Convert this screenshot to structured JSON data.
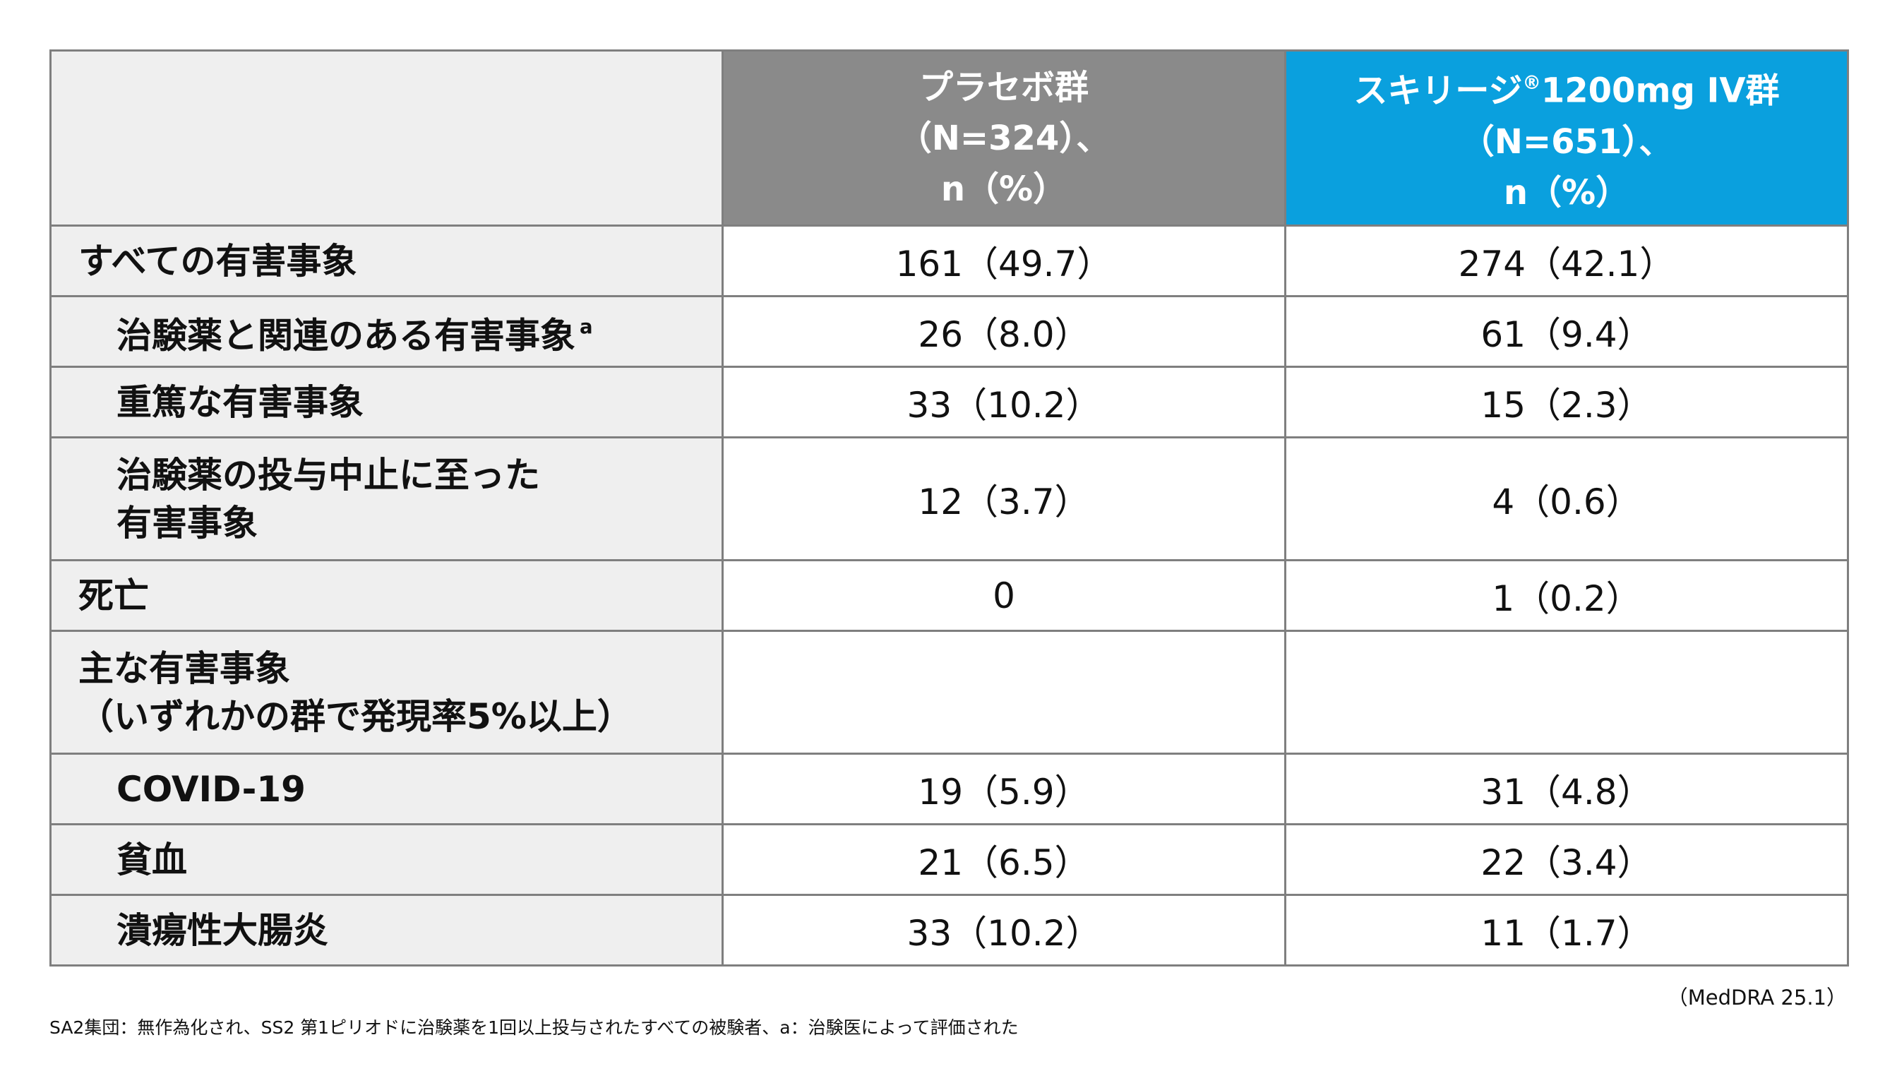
{
  "table": {
    "header": {
      "placebo": {
        "line1": "プラセボ群",
        "line2": "（N=324）、",
        "line3": "n（%）"
      },
      "skyrizi": {
        "name": "スキリージ",
        "reg": "®",
        "dose": "1200mg IV群",
        "line2": "（N=651）、",
        "line3": "n（%）"
      }
    },
    "rows": [
      {
        "label": "すべての有害事象",
        "placebo": "161（49.7）",
        "skyrizi": "274（42.1）"
      },
      {
        "label": "治験薬と関連のある有害事象",
        "sup": "a",
        "placebo": "26（8.0）",
        "skyrizi": "61（9.4）"
      },
      {
        "label": "重篤な有害事象",
        "placebo": "33（10.2）",
        "skyrizi": "15（2.3）"
      },
      {
        "label_line1": "治験薬の投与中止に至った",
        "label_line2": "有害事象",
        "placebo": "12（3.7）",
        "skyrizi": "4（0.6）"
      },
      {
        "label": "死亡",
        "placebo": "0",
        "skyrizi": "1（0.2）"
      },
      {
        "label_line1": "主な有害事象",
        "label_line2": "（いずれかの群で発現率5%以上）",
        "placebo": "",
        "skyrizi": ""
      },
      {
        "label": "COVID-19",
        "placebo": "19（5.9）",
        "skyrizi": "31（4.8）"
      },
      {
        "label": "貧血",
        "placebo": "21（6.5）",
        "skyrizi": "22（3.4）"
      },
      {
        "label": "潰瘍性大腸炎",
        "placebo": "33（10.2）",
        "skyrizi": "11（1.7）"
      }
    ]
  },
  "source": "（MedDRA 25.1）",
  "footnote": "SA2集団：無作為化され、SS2 第1ピリオドに治験薬を1回以上投与されたすべての被験者、a：治験医によって評価された",
  "colors": {
    "placebo_header": "#8a8a8a",
    "skyrizi_header": "#0aa0de",
    "label_bg": "#efefef",
    "border": "#7f7f7f"
  }
}
